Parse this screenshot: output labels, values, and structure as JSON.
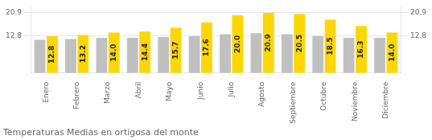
{
  "chart_data": {
    "type": "bar",
    "title": "Temperaturas Medias en ortigosa del monte",
    "categories": [
      "Enero",
      "Febrero",
      "Marzo",
      "Abril",
      "Mayo",
      "Junio",
      "Julio",
      "Agosto",
      "Septiembre",
      "Octubre",
      "Noviembre",
      "Diciembre"
    ],
    "series": [
      {
        "color": "#C0C0C0",
        "values": [
          11.5,
          11.8,
          12.2,
          12.2,
          12.5,
          12.8,
          13.5,
          13.8,
          13.5,
          12.8,
          12.2,
          12.2
        ]
      },
      {
        "color": "#FFD700",
        "values": [
          12.8,
          13.2,
          14.0,
          14.4,
          15.7,
          17.6,
          20.0,
          20.9,
          20.5,
          18.5,
          16.3,
          14.0
        ],
        "data_labels": true,
        "value_labels": [
          "12.8",
          "13.2",
          "14.0",
          "14.4",
          "15.7",
          "17.6",
          "20.0",
          "20.9",
          "20.5",
          "18.5",
          "16.3",
          "14.0"
        ]
      }
    ],
    "ylim": [
      0,
      22.99
    ],
    "yticks": [
      12.8,
      20.9
    ],
    "y2lim": [
      0,
      22.99
    ],
    "y2ticks": [
      12.8,
      20.9
    ],
    "grid": true
  }
}
